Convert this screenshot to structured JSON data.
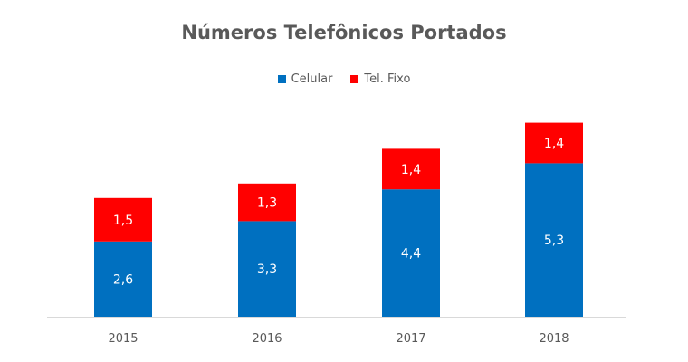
{
  "chart_data": {
    "type": "bar",
    "stacked": true,
    "title": "Números Telefônicos Portados",
    "categories": [
      "2015",
      "2016",
      "2017",
      "2018"
    ],
    "series": [
      {
        "name": "Celular",
        "color": "#0070C0",
        "values": [
          2.6,
          3.3,
          4.4,
          5.3
        ],
        "labels": [
          "2,6",
          "3,3",
          "4,4",
          "5,3"
        ]
      },
      {
        "name": "Tel. Fixo",
        "color": "#FF0000",
        "values": [
          1.5,
          1.3,
          1.4,
          1.4
        ],
        "labels": [
          "1,5",
          "1,3",
          "1,4",
          "1,4"
        ]
      }
    ],
    "legend_position": "top",
    "grid": false,
    "ylim": [
      0,
      7
    ]
  }
}
